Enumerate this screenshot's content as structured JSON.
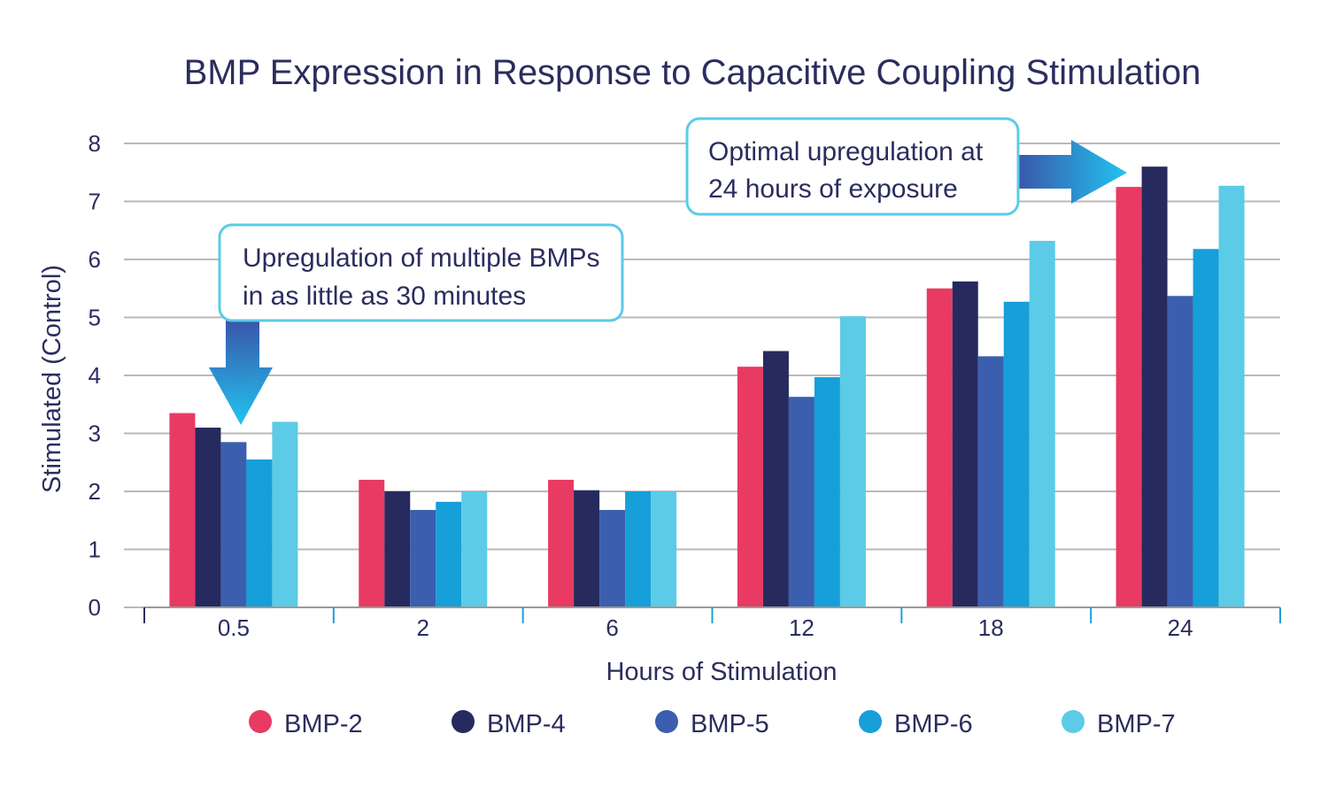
{
  "chart_data": {
    "type": "bar",
    "title": "BMP Expression in Response to Capacitive Coupling Stimulation",
    "xlabel": "Hours of Stimulation",
    "ylabel": "Stimulated (Control)",
    "ylim": [
      0,
      8
    ],
    "yticks": [
      "0",
      "1",
      "2",
      "3",
      "4",
      "5",
      "6",
      "7",
      "8"
    ],
    "grid": true,
    "legend_position": "bottom",
    "categories": [
      "0.5",
      "2",
      "6",
      "12",
      "18",
      "24"
    ],
    "series": [
      {
        "name": "BMP-2",
        "color": "#e83a62",
        "values": [
          3.35,
          2.2,
          2.2,
          4.15,
          5.5,
          7.25
        ]
      },
      {
        "name": "BMP-4",
        "color": "#262a5e",
        "values": [
          3.1,
          2.0,
          2.02,
          4.42,
          5.62,
          7.6
        ]
      },
      {
        "name": "BMP-5",
        "color": "#3b5fae",
        "values": [
          2.85,
          1.68,
          1.68,
          3.63,
          4.33,
          5.37
        ]
      },
      {
        "name": "BMP-6",
        "color": "#169fd8",
        "values": [
          2.55,
          1.82,
          2.0,
          3.97,
          5.27,
          6.18
        ]
      },
      {
        "name": "BMP-7",
        "color": "#5ccbe7",
        "values": [
          3.2,
          2.0,
          2.0,
          5.02,
          6.32,
          7.27
        ]
      }
    ],
    "annotations": [
      {
        "lines": [
          "Upregulation of multiple BMPs",
          "in as little as 30 minutes"
        ]
      },
      {
        "lines": [
          "Optimal upregulation at",
          "24 hours of exposure"
        ]
      }
    ]
  }
}
